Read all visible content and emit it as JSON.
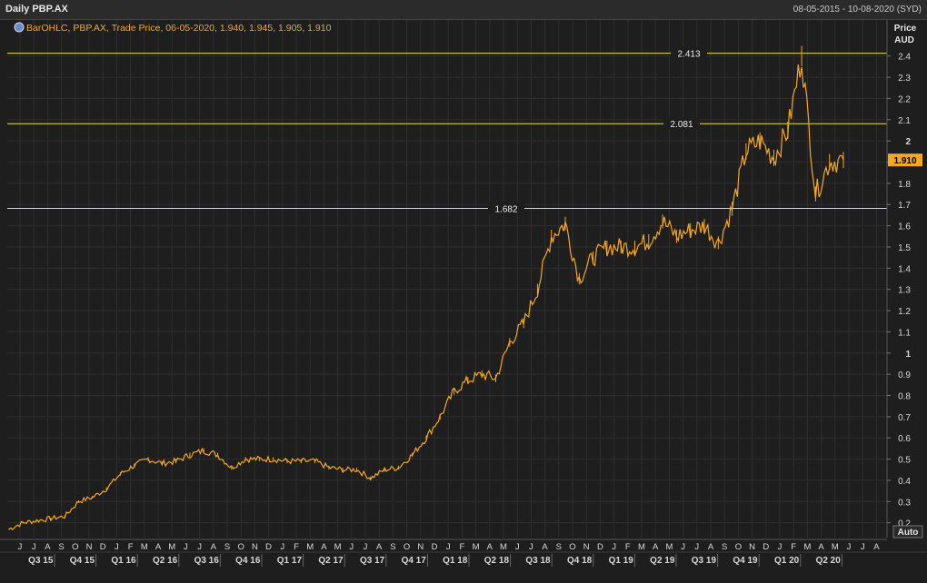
{
  "header": {
    "title": "Daily PBP.AX",
    "date_range": "08-05-2015 - 10-08-2020 (SYD)"
  },
  "legend": {
    "icon": "chart-settings-icon",
    "text": "BarOHLC, PBP.AX, Trade Price, 06-05-2020, 1.940, 1.945, 1.905, 1.910"
  },
  "axis": {
    "y_title": "Price",
    "y_unit": "AUD",
    "auto_label": "Auto",
    "last_price_label": "1.910"
  },
  "colors": {
    "background": "#1e1e1e",
    "series": "#f5a623",
    "hline": "#e8e24a",
    "grid": "#2e2e2e",
    "price_badge": "#f5a623"
  },
  "chart_data": {
    "type": "line",
    "subtype": "ohlc",
    "ylim": [
      0.13,
      2.57
    ],
    "yticks": [
      0.2,
      0.3,
      0.4,
      0.5,
      0.6,
      0.7,
      0.8,
      0.9,
      1,
      1.1,
      1.2,
      1.3,
      1.4,
      1.5,
      1.6,
      1.7,
      1.8,
      1.9,
      2,
      2.1,
      2.2,
      2.3,
      2.4
    ],
    "ytick_labels": [
      "0.2",
      "0.3",
      "0.4",
      "0.5",
      "0.6",
      "0.7",
      "0.8",
      "0.9",
      "1",
      "1.1",
      "1.2",
      "1.3",
      "1.4",
      "1.5",
      "1.6",
      "1.7",
      "1.8",
      "1.9",
      "2",
      "2.1",
      "2.2",
      "2.3",
      "2.4"
    ],
    "month_labels": [
      "J",
      "J",
      "A",
      "S",
      "O",
      "N",
      "D",
      "J",
      "F",
      "M",
      "A",
      "M",
      "J",
      "J",
      "A",
      "S",
      "O",
      "N",
      "D",
      "J",
      "F",
      "M",
      "A",
      "M",
      "J",
      "J",
      "A",
      "S",
      "O",
      "N",
      "D",
      "J",
      "F",
      "M",
      "A",
      "M",
      "J",
      "J",
      "A",
      "S",
      "O",
      "N",
      "D",
      "J",
      "F",
      "M",
      "A",
      "M",
      "J",
      "J",
      "A",
      "S",
      "O",
      "N",
      "D",
      "J",
      "F",
      "M",
      "A",
      "M",
      "J",
      "J",
      "A"
    ],
    "quarter_labels": [
      "Q3 15",
      "Q4 15",
      "Q1 16",
      "Q2 16",
      "Q3 16",
      "Q4 16",
      "Q1 17",
      "Q2 17",
      "Q3 17",
      "Q4 17",
      "Q1 18",
      "Q2 18",
      "Q3 18",
      "Q4 18",
      "Q1 19",
      "Q2 19",
      "Q3 19",
      "Q4 19",
      "Q1 20",
      "Q2 20"
    ],
    "hlines": [
      {
        "value": 2.413,
        "label": "2.413"
      },
      {
        "value": 2.081,
        "label": "2.081"
      },
      {
        "value": 1.682,
        "label": "1.682"
      }
    ],
    "last_value": 1.91,
    "series": [
      {
        "x": [
          "2015-05",
          "2015-06",
          "2015-07",
          "2015-08",
          "2015-09",
          "2015-10",
          "2015-11",
          "2015-12",
          "2016-01",
          "2016-02",
          "2016-03",
          "2016-04",
          "2016-05",
          "2016-06",
          "2016-07",
          "2016-08",
          "2016-09",
          "2016-10",
          "2016-11",
          "2016-12",
          "2017-01",
          "2017-02",
          "2017-03",
          "2017-04",
          "2017-05",
          "2017-06",
          "2017-07",
          "2017-08",
          "2017-09",
          "2017-10",
          "2017-11",
          "2017-12",
          "2018-01",
          "2018-02",
          "2018-03",
          "2018-04",
          "2018-05",
          "2018-06",
          "2018-07",
          "2018-08",
          "2018-09",
          "2018-10",
          "2018-11",
          "2018-12",
          "2019-01",
          "2019-02",
          "2019-03",
          "2019-04",
          "2019-05",
          "2019-06",
          "2019-07",
          "2019-08",
          "2019-09",
          "2019-10",
          "2019-11",
          "2019-12",
          "2020-01",
          "2020-02",
          "2020-03",
          "2020-04",
          "2020-05"
        ],
        "values": [
          0.17,
          0.2,
          0.21,
          0.22,
          0.23,
          0.3,
          0.32,
          0.36,
          0.43,
          0.47,
          0.5,
          0.48,
          0.49,
          0.52,
          0.54,
          0.52,
          0.46,
          0.5,
          0.5,
          0.5,
          0.49,
          0.49,
          0.49,
          0.46,
          0.45,
          0.45,
          0.41,
          0.45,
          0.46,
          0.52,
          0.6,
          0.7,
          0.82,
          0.87,
          0.9,
          0.88,
          1.05,
          1.14,
          1.3,
          1.55,
          1.61,
          1.35,
          1.45,
          1.5,
          1.5,
          1.5,
          1.53,
          1.62,
          1.55,
          1.58,
          1.6,
          1.52,
          1.68,
          1.95,
          2.0,
          1.92,
          2.05,
          2.4,
          1.75,
          1.9,
          1.91
        ]
      }
    ]
  }
}
